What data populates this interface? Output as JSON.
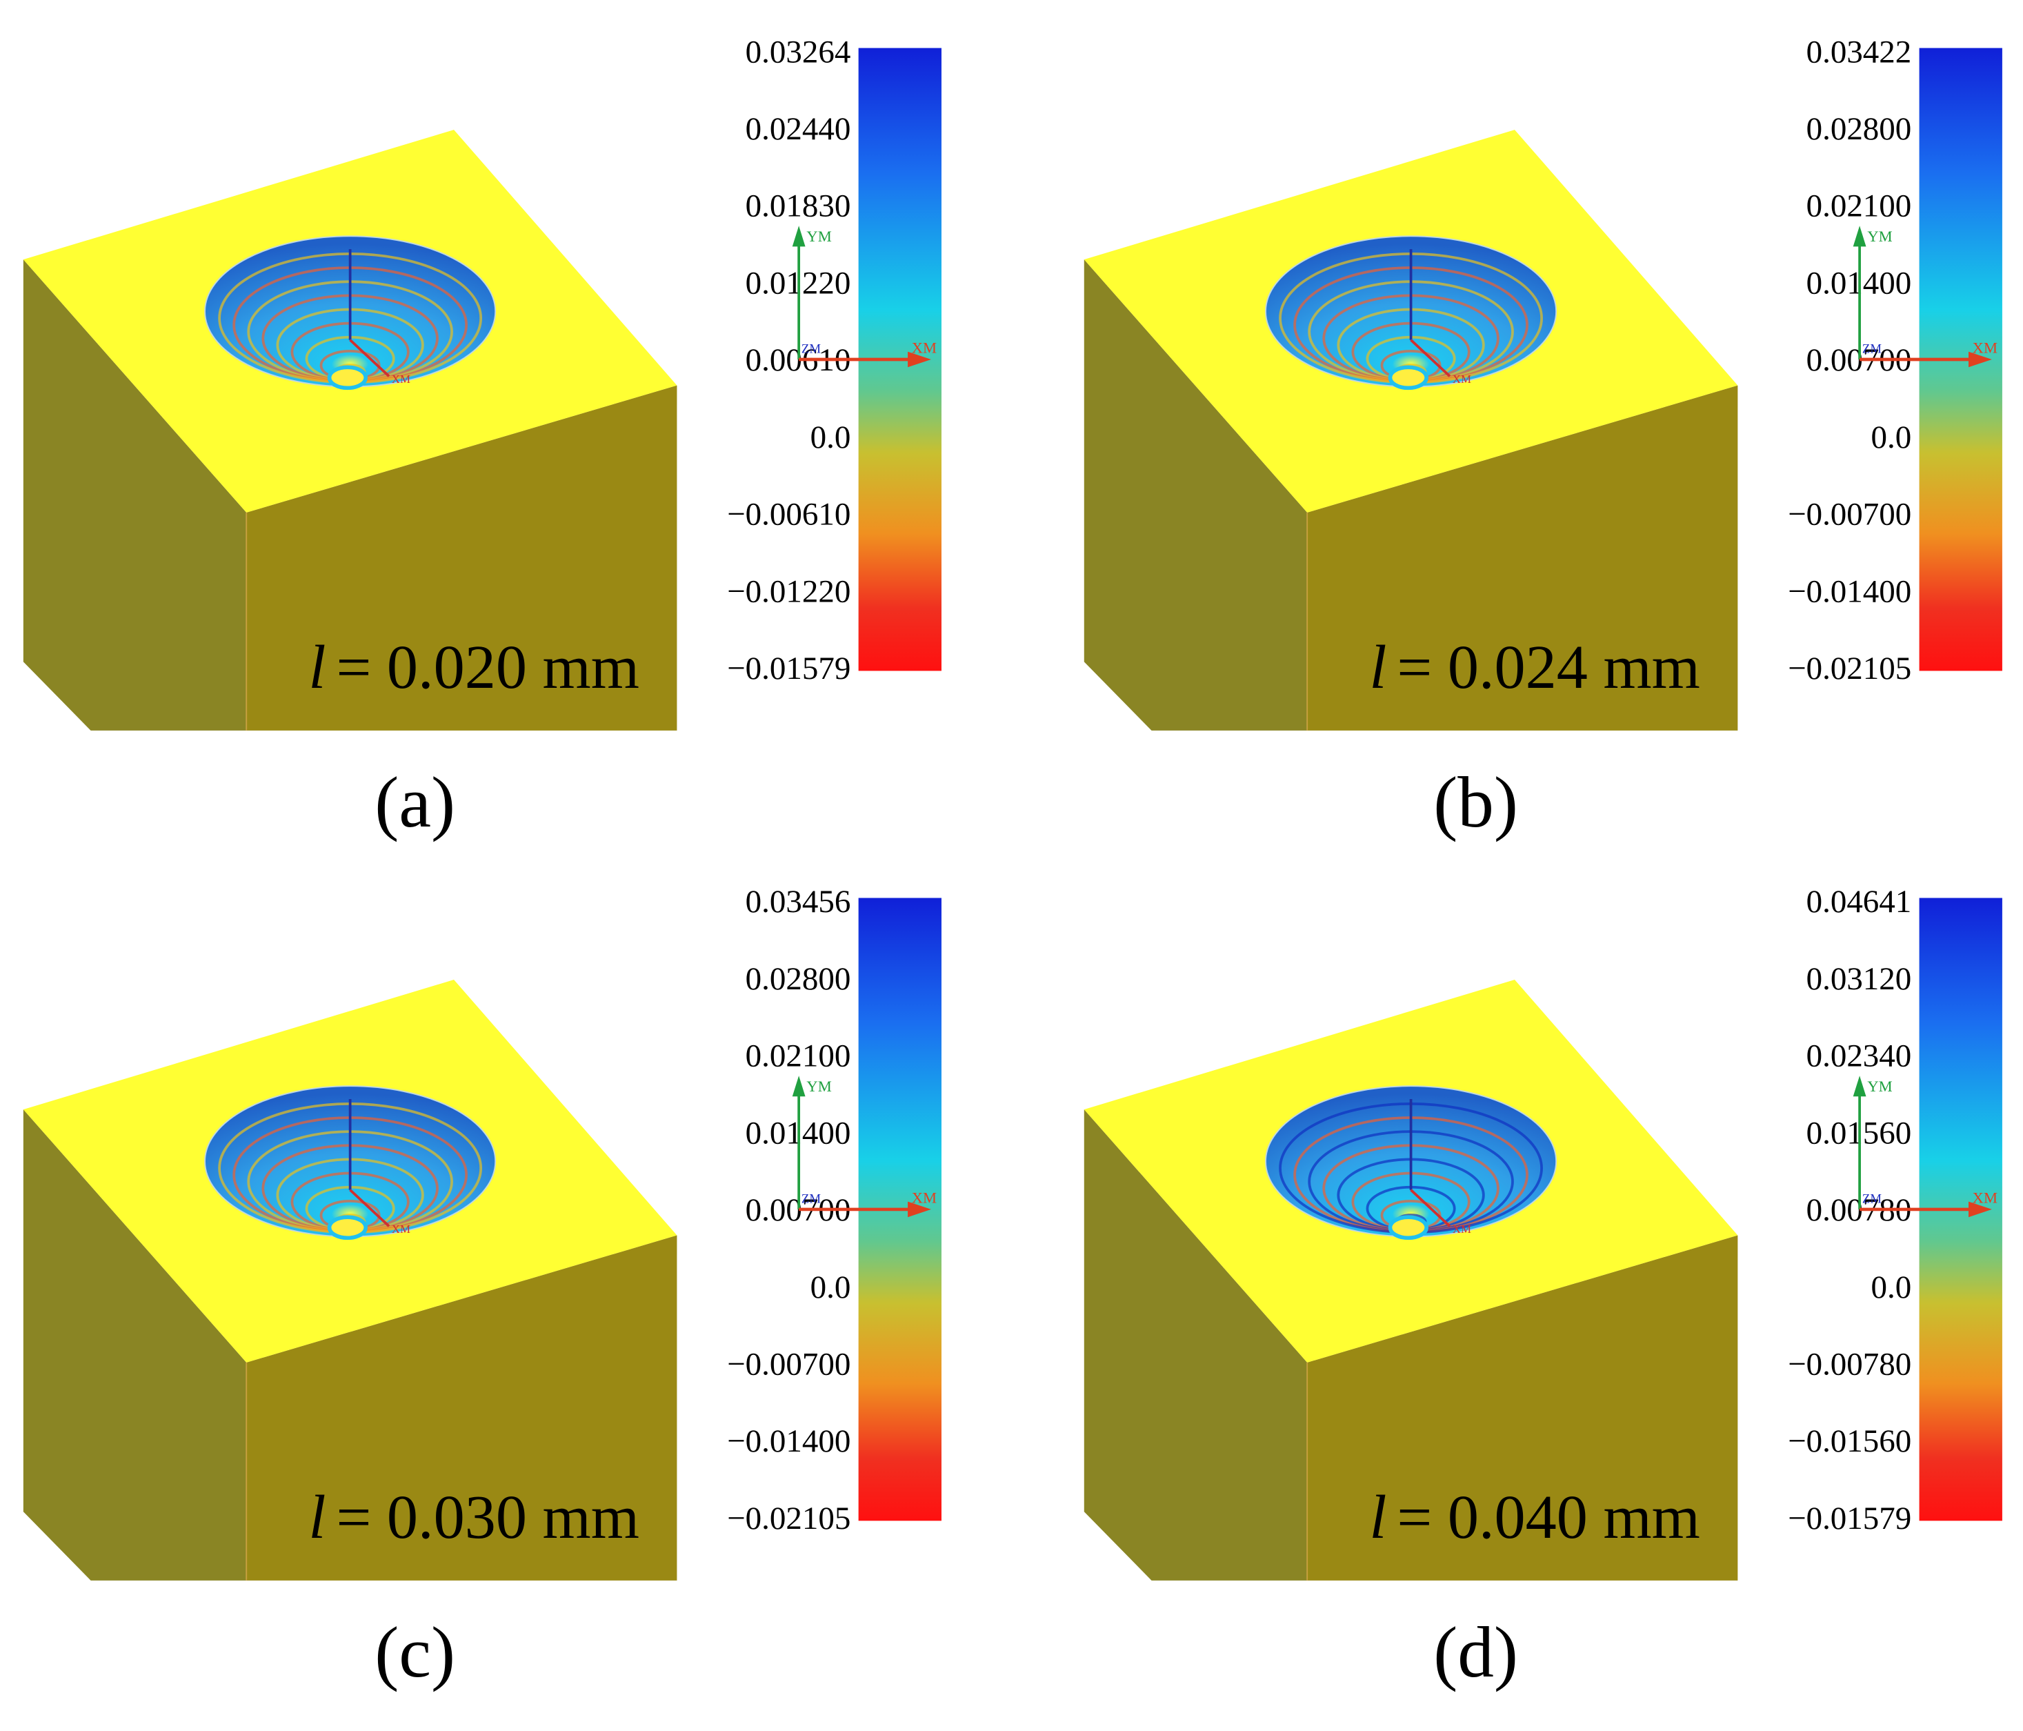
{
  "axes": {
    "x": "XM",
    "y": "YM",
    "z": "ZM"
  },
  "panels": [
    {
      "label": "(a)",
      "variable": "l",
      "length": "= 0.020 mm",
      "colorbar_ticks": [
        "0.03264",
        "0.02440",
        "0.01830",
        "0.01220",
        "0.00610",
        "0.0",
        "−0.00610",
        "−0.01220",
        "−0.01579"
      ]
    },
    {
      "label": "(b)",
      "variable": "l",
      "length": "= 0.024 mm",
      "colorbar_ticks": [
        "0.03422",
        "0.02800",
        "0.02100",
        "0.01400",
        "0.00700",
        "0.0",
        "−0.00700",
        "−0.01400",
        "−0.02105"
      ]
    },
    {
      "label": "(c)",
      "variable": "l",
      "length": "= 0.030 mm",
      "colorbar_ticks": [
        "0.03456",
        "0.02800",
        "0.02100",
        "0.01400",
        "0.00700",
        "0.0",
        "−0.00700",
        "−0.01400",
        "−0.02105"
      ]
    },
    {
      "label": "(d)",
      "variable": "l",
      "length": "= 0.040 mm",
      "colorbar_ticks": [
        "0.04641",
        "0.03120",
        "0.02340",
        "0.01560",
        "0.00780",
        "0.0",
        "−0.00780",
        "−0.01560",
        "−0.01579"
      ]
    }
  ]
}
